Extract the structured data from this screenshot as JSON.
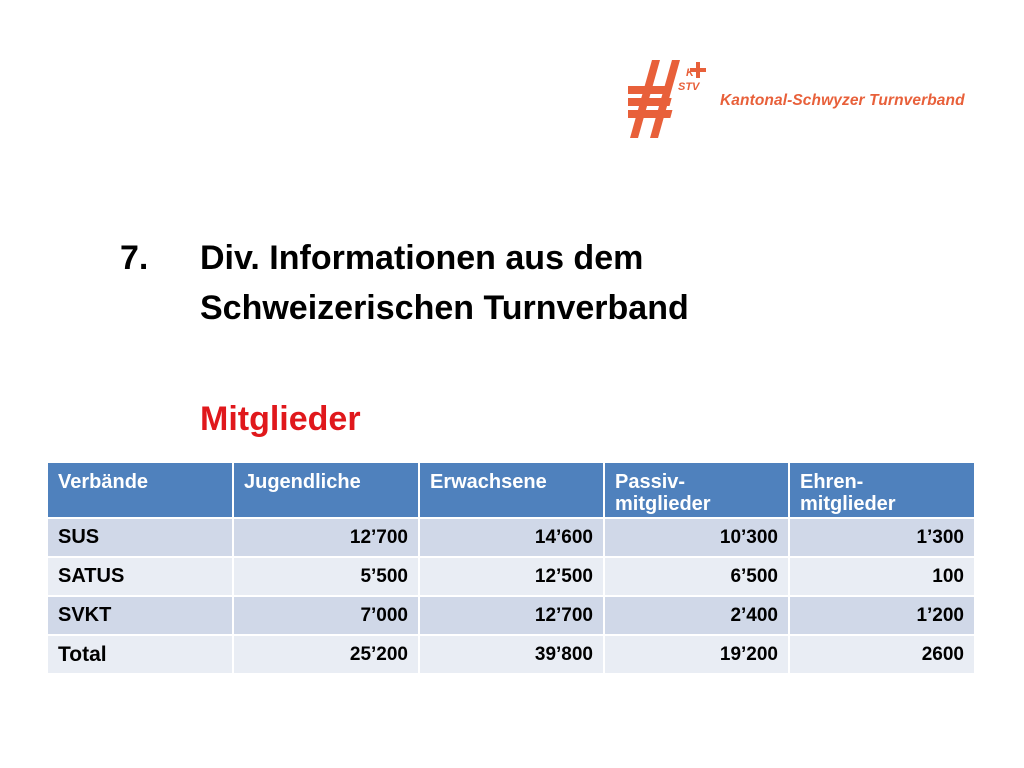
{
  "logo": {
    "mark": "K STV",
    "name": "Kantonal-Schwyzer Turnverband",
    "color": "#e8603a"
  },
  "heading": {
    "number": "7.",
    "line1": "Div. Informationen aus dem",
    "line2": "Schweizerischen Turnverband",
    "subtitle": "Mitglieder",
    "subtitle_color": "#e0181c"
  },
  "table": {
    "header_color": "#4f81bd",
    "row_color": "#d0d8e8",
    "row_alt_color": "#e9edf4",
    "columns": [
      "Verbände",
      "Jugendliche",
      "Erwachsene",
      "Passiv-\nmitglieder",
      "Ehren-\nmitglieder"
    ],
    "rows": [
      [
        "SUS",
        "12’700",
        "14’600",
        "10’300",
        "1’300"
      ],
      [
        "SATUS",
        "5’500",
        "12’500",
        "6’500",
        "100"
      ],
      [
        "SVKT",
        "7’000",
        "12’700",
        "2’400",
        "1’200"
      ],
      [
        "Total",
        "25’200",
        "39’800",
        "19’200",
        "2600"
      ]
    ]
  }
}
